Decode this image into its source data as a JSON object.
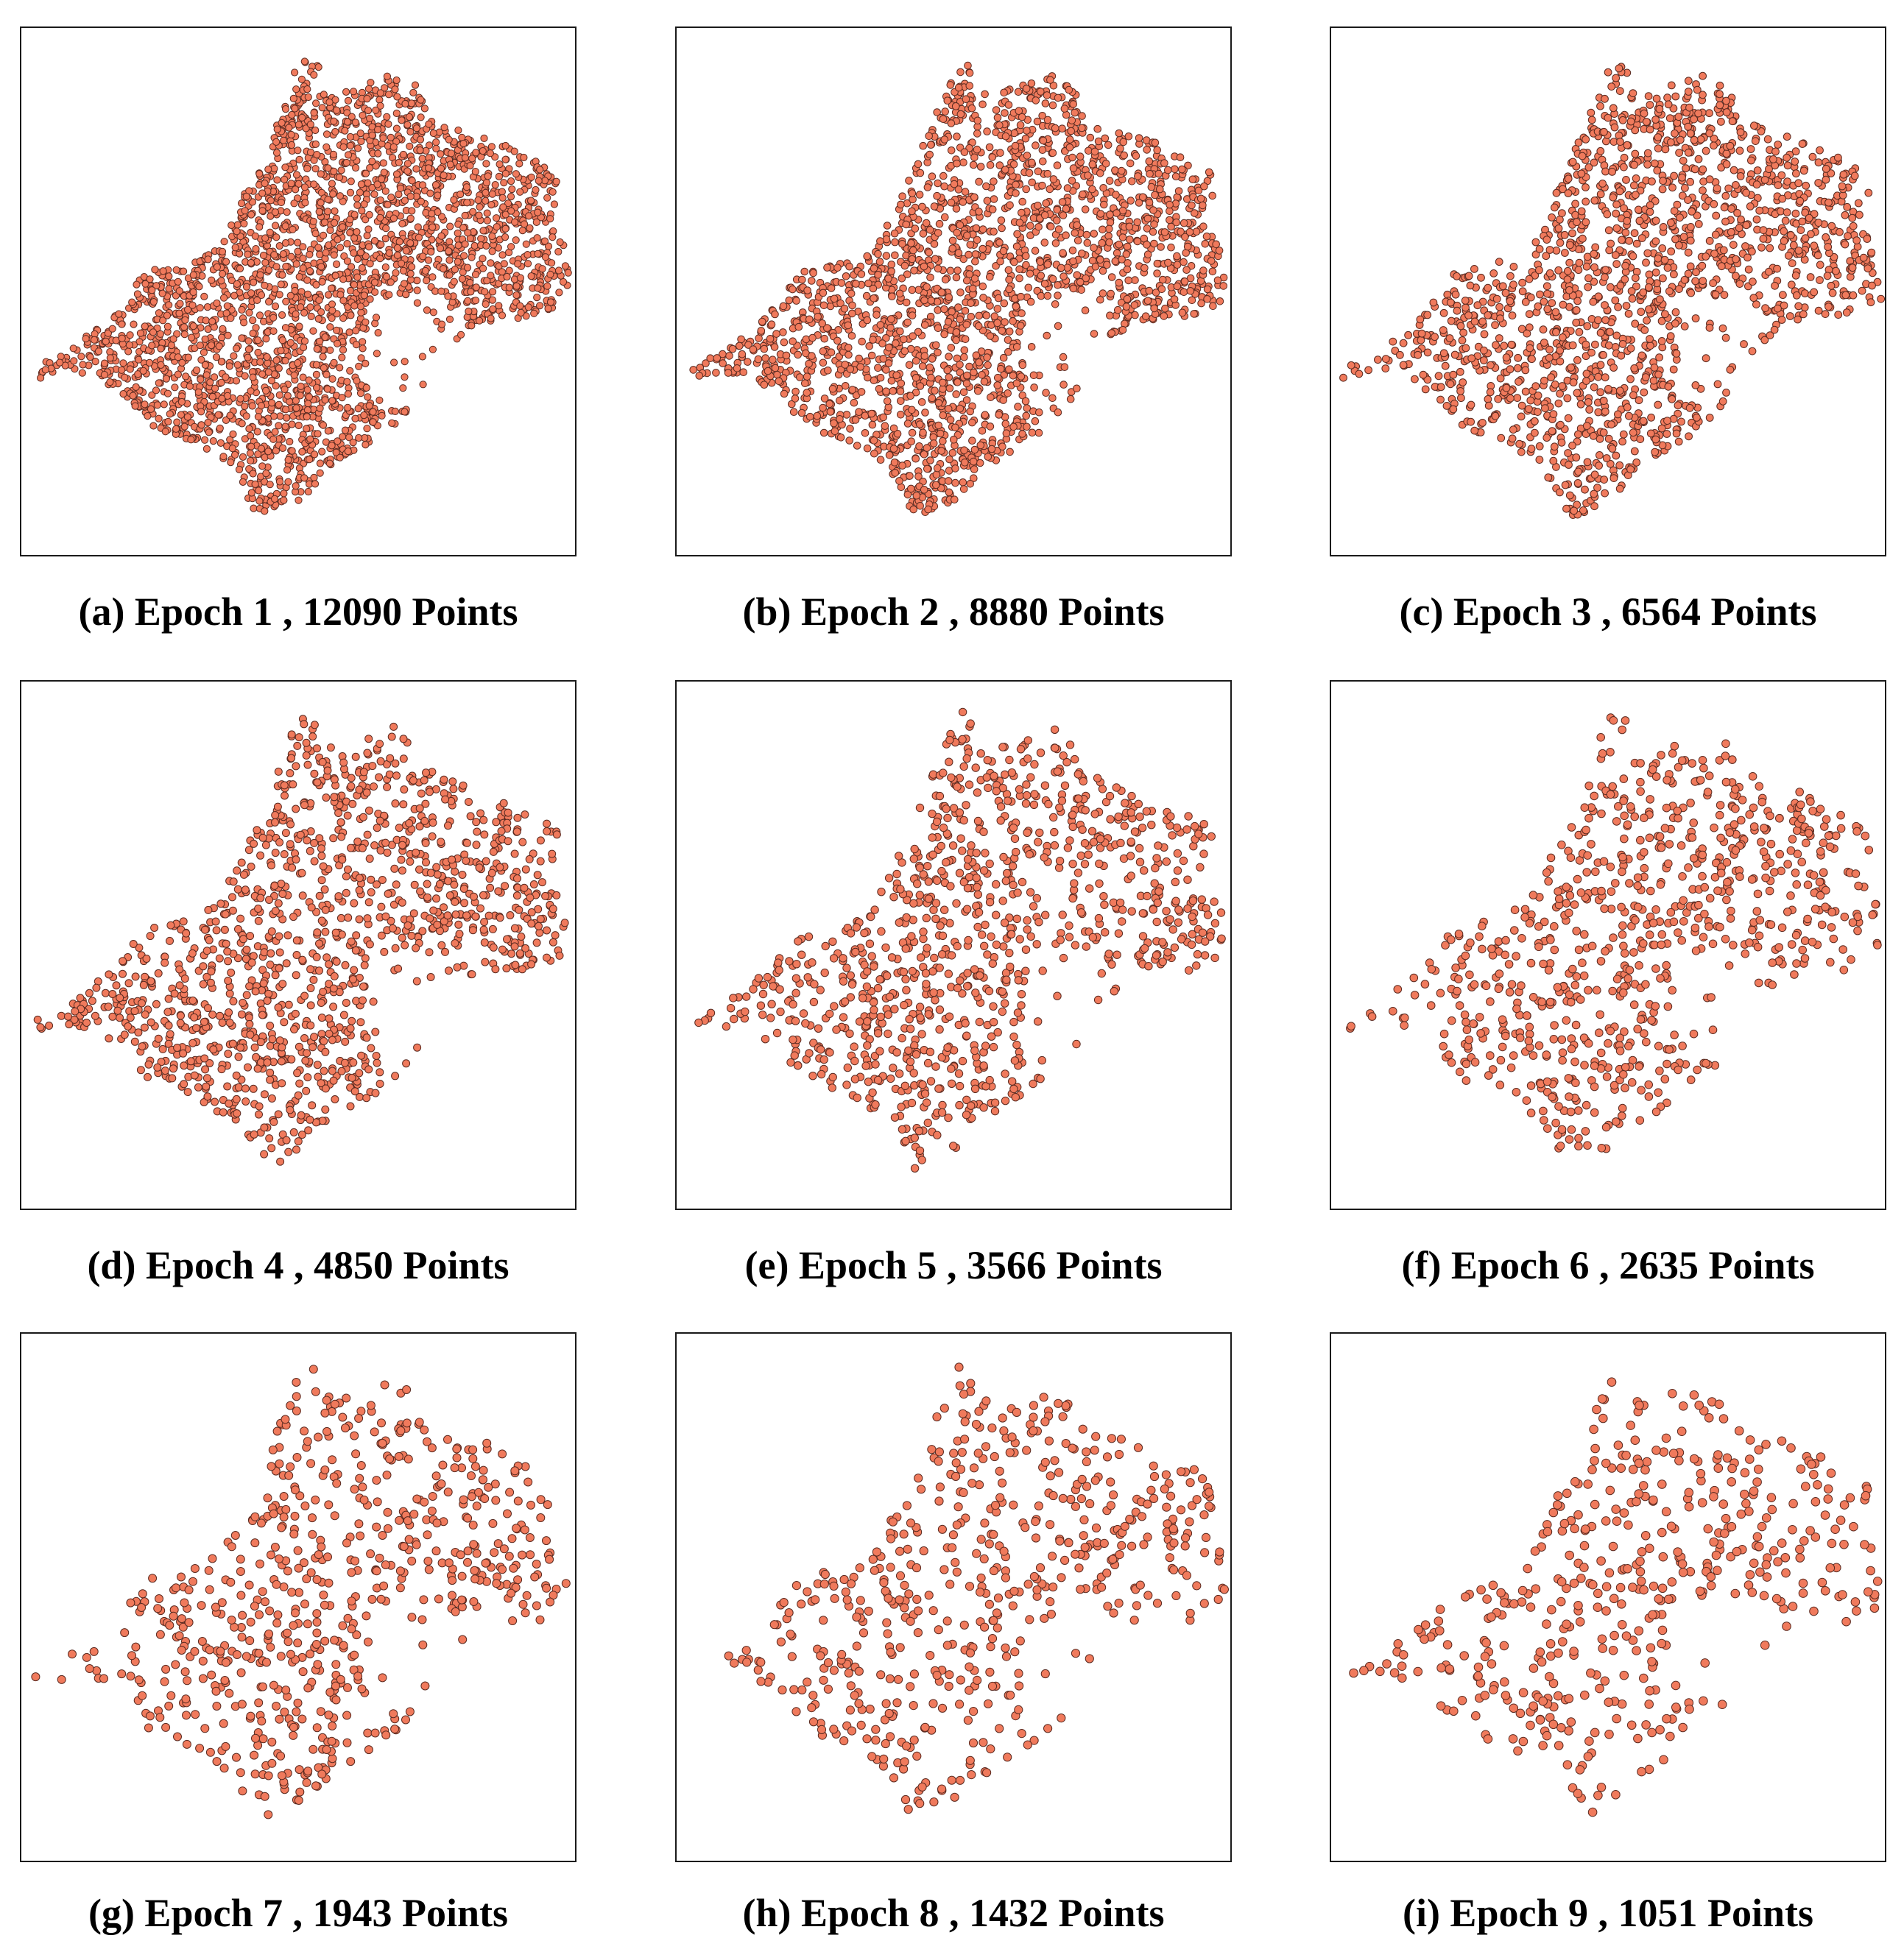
{
  "figure": {
    "panels": [
      {
        "caption": "(a) Epoch 1 , 12090 Points",
        "epoch": 1,
        "points": 12090
      },
      {
        "caption": "(b) Epoch 2 , 8880 Points",
        "epoch": 2,
        "points": 8880
      },
      {
        "caption": "(c) Epoch 3 , 6564 Points",
        "epoch": 3,
        "points": 6564
      },
      {
        "caption": "(d) Epoch 4 , 4850 Points",
        "epoch": 4,
        "points": 4850
      },
      {
        "caption": "(e) Epoch 5 , 3566 Points",
        "epoch": 5,
        "points": 3566
      },
      {
        "caption": "(f) Epoch 6 , 2635 Points",
        "epoch": 6,
        "points": 2635
      },
      {
        "caption": "(g) Epoch 7 , 1943 Points",
        "epoch": 7,
        "points": 1943
      },
      {
        "caption": "(h) Epoch 8 , 1432 Points",
        "epoch": 8,
        "points": 1432
      },
      {
        "caption": "(i) Epoch 9 , 1051 Points",
        "epoch": 9,
        "points": 1051
      }
    ],
    "colors": {
      "point_fill": "#f07a5c",
      "point_stroke": "#5a2a20",
      "frame": "#1a1a1a",
      "background": "#ffffff"
    }
  }
}
